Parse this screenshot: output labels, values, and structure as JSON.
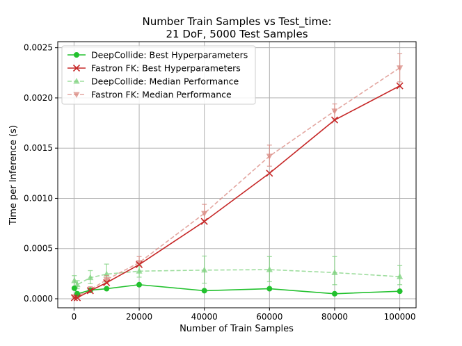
{
  "chart_data": {
    "type": "line",
    "title": "Number Train Samples vs Test_time:",
    "subtitle": "21 DoF, 5000 Test Samples",
    "xlabel": "Number of Train Samples",
    "ylabel": "Time per Inference (s)",
    "xlim": [
      -5000,
      105000
    ],
    "ylim": [
      -9e-05,
      0.00256
    ],
    "xticks": [
      0,
      20000,
      40000,
      60000,
      80000,
      100000
    ],
    "xtick_labels": [
      "0",
      "20000",
      "40000",
      "60000",
      "80000",
      "100000"
    ],
    "yticks": [
      0.0,
      0.0005,
      0.001,
      0.0015,
      0.002,
      0.0025
    ],
    "ytick_labels": [
      "0.0000",
      "0.0005",
      "0.0010",
      "0.0015",
      "0.0020",
      "0.0025"
    ],
    "grid": true,
    "legend_position": "top-left",
    "x": [
      100,
      1000,
      5000,
      10000,
      20000,
      40000,
      60000,
      80000,
      100000
    ],
    "series": [
      {
        "name": "DeepCollide: Best Hyperparameters",
        "color": "#22c12e",
        "linestyle": "solid",
        "marker": "circle",
        "values": [
          0.000105,
          5e-05,
          8.5e-05,
          0.0001,
          0.00014,
          8e-05,
          0.0001,
          5e-05,
          7.5e-05
        ]
      },
      {
        "name": "Fastron FK: Best Hyperparameters",
        "color": "#c62828",
        "linestyle": "solid",
        "marker": "x",
        "values": [
          1e-05,
          1e-05,
          8e-05,
          0.00016,
          0.00034,
          0.00077,
          0.00125,
          0.00178,
          0.00212
        ]
      },
      {
        "name": "DeepCollide: Median Performance",
        "color": "#7ed27e",
        "linestyle": "dashed",
        "marker": "triangle-up",
        "values": [
          0.00018,
          0.00014,
          0.00021,
          0.000245,
          0.000275,
          0.000285,
          0.00029,
          0.00026,
          0.00022
        ],
        "err_low": [
          8e-05,
          4e-05,
          6e-05,
          8e-05,
          6e-05,
          0.00013,
          0.00012,
          0.00012,
          8e-05
        ],
        "err_high": [
          5e-05,
          4e-05,
          7e-05,
          0.0001,
          6e-05,
          0.00014,
          0.00013,
          0.00016,
          0.00011
        ]
      },
      {
        "name": "Fastron FK: Median Performance",
        "color": "#d98880",
        "linestyle": "dashed",
        "marker": "triangle-down",
        "values": [
          2e-05,
          3e-05,
          9e-05,
          0.00019,
          0.00036,
          0.00085,
          0.00142,
          0.00187,
          0.0023
        ],
        "err_low": [
          1e-05,
          2e-05,
          3e-05,
          4e-05,
          3e-05,
          7e-05,
          0.0001,
          8e-05,
          0.00014
        ],
        "err_high": [
          1e-05,
          2e-05,
          3e-05,
          4e-05,
          6e-05,
          9e-05,
          0.00011,
          7e-05,
          0.00014
        ]
      }
    ]
  }
}
